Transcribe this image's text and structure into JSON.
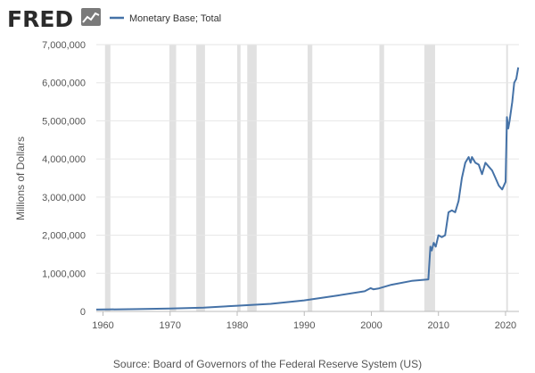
{
  "header": {
    "logo_text": "FRED",
    "legend_label": "Monetary Base; Total"
  },
  "colors": {
    "series": "#4572a7",
    "recession": "#e1e1e1",
    "logo": "#2b2b2b",
    "axis_text": "#555555",
    "grid": "#e6e6e6"
  },
  "icons": {
    "logo_badge": "line-chart-icon"
  },
  "source": "Source: Board of Governors of the Federal Reserve System (US)",
  "chart_data": {
    "type": "line",
    "ylabel": "Millions of Dollars",
    "xlabel": "",
    "xlim": [
      1959.0,
      2022.0
    ],
    "ylim": [
      0,
      7000000
    ],
    "xticks": [
      1960,
      1970,
      1980,
      1990,
      2000,
      2010,
      2020
    ],
    "xtick_labels": [
      "1960",
      "1970",
      "1980",
      "1990",
      "2000",
      "2010",
      "2020"
    ],
    "yticks": [
      0,
      1000000,
      2000000,
      3000000,
      4000000,
      5000000,
      6000000,
      7000000
    ],
    "ytick_labels": [
      "0",
      "1,000,000",
      "2,000,000",
      "3,000,000",
      "4,000,000",
      "5,000,000",
      "6,000,000",
      "7,000,000"
    ],
    "grid": "horizontal",
    "legend_position": "top-left",
    "recessions": [
      [
        1960.3,
        1961.1
      ],
      [
        1969.9,
        1970.9
      ],
      [
        1973.9,
        1975.2
      ],
      [
        1980.0,
        1980.5
      ],
      [
        1981.5,
        1982.9
      ],
      [
        1990.5,
        1991.2
      ],
      [
        2001.2,
        2001.9
      ],
      [
        2007.9,
        2009.5
      ],
      [
        2020.1,
        2020.3
      ]
    ],
    "series": [
      {
        "name": "Monetary Base; Total",
        "points": [
          [
            1959.0,
            50000
          ],
          [
            1965.0,
            60000
          ],
          [
            1970.0,
            75000
          ],
          [
            1975.0,
            100000
          ],
          [
            1980.0,
            150000
          ],
          [
            1985.0,
            200000
          ],
          [
            1990.0,
            290000
          ],
          [
            1995.0,
            420000
          ],
          [
            1999.0,
            530000
          ],
          [
            1999.9,
            610000
          ],
          [
            2000.3,
            580000
          ],
          [
            2001.0,
            600000
          ],
          [
            2003.0,
            700000
          ],
          [
            2006.0,
            800000
          ],
          [
            2008.5,
            840000
          ],
          [
            2008.8,
            1700000
          ],
          [
            2009.0,
            1600000
          ],
          [
            2009.3,
            1800000
          ],
          [
            2009.6,
            1700000
          ],
          [
            2010.0,
            2000000
          ],
          [
            2010.5,
            1950000
          ],
          [
            2011.0,
            2000000
          ],
          [
            2011.5,
            2600000
          ],
          [
            2012.0,
            2650000
          ],
          [
            2012.5,
            2600000
          ],
          [
            2013.0,
            2900000
          ],
          [
            2013.5,
            3500000
          ],
          [
            2014.0,
            3900000
          ],
          [
            2014.5,
            4050000
          ],
          [
            2014.8,
            3900000
          ],
          [
            2015.0,
            4050000
          ],
          [
            2015.5,
            3900000
          ],
          [
            2016.0,
            3850000
          ],
          [
            2016.5,
            3600000
          ],
          [
            2017.0,
            3900000
          ],
          [
            2017.5,
            3800000
          ],
          [
            2018.0,
            3700000
          ],
          [
            2018.5,
            3500000
          ],
          [
            2019.0,
            3300000
          ],
          [
            2019.5,
            3200000
          ],
          [
            2020.0,
            3400000
          ],
          [
            2020.2,
            5100000
          ],
          [
            2020.4,
            4800000
          ],
          [
            2020.6,
            5000000
          ],
          [
            2021.0,
            5500000
          ],
          [
            2021.3,
            6000000
          ],
          [
            2021.6,
            6100000
          ],
          [
            2021.9,
            6400000
          ]
        ]
      }
    ]
  }
}
